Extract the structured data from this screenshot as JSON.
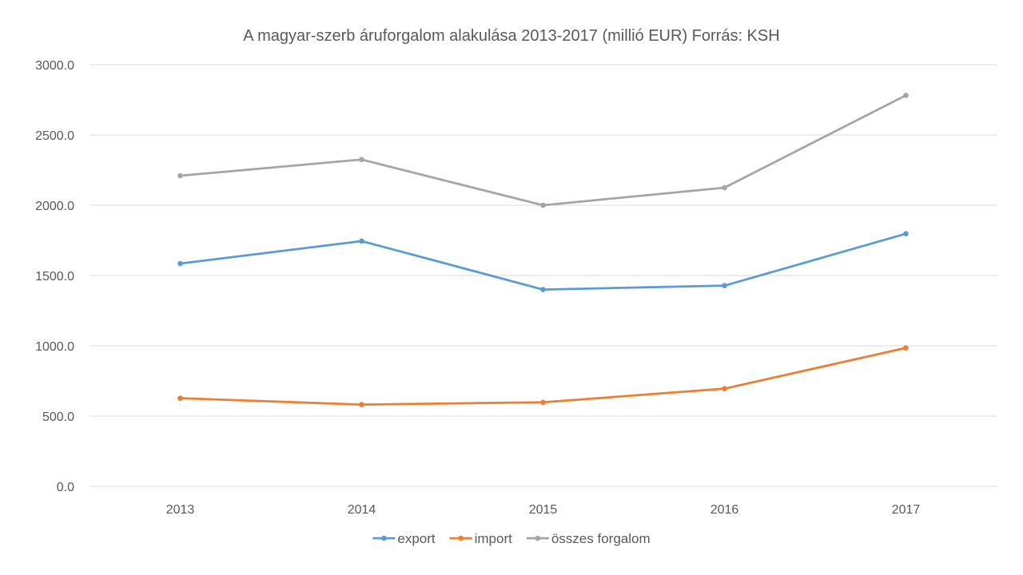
{
  "chart_data": {
    "type": "line",
    "title": "A magyar-szerb áruforgalom alakulása 2013-2017 (millió EUR) Forrás: KSH",
    "xlabel": "",
    "ylabel": "",
    "categories": [
      "2013",
      "2014",
      "2015",
      "2016",
      "2017"
    ],
    "ylim": [
      0,
      3000
    ],
    "yticks": [
      "0.0",
      "500.0",
      "1000.0",
      "1500.0",
      "2000.0",
      "2500.0",
      "3000.0"
    ],
    "grid": true,
    "legend_position": "bottom",
    "series": [
      {
        "name": "export",
        "color": "#5b9bd5",
        "values": [
          1585,
          1745,
          1400,
          1428,
          1797
        ]
      },
      {
        "name": "import",
        "color": "#ed7d31",
        "values": [
          627,
          582,
          598,
          695,
          985
        ]
      },
      {
        "name": "összes forgalom",
        "color": "#a5a5a5",
        "values": [
          2210,
          2325,
          2000,
          2125,
          2782
        ]
      }
    ]
  }
}
